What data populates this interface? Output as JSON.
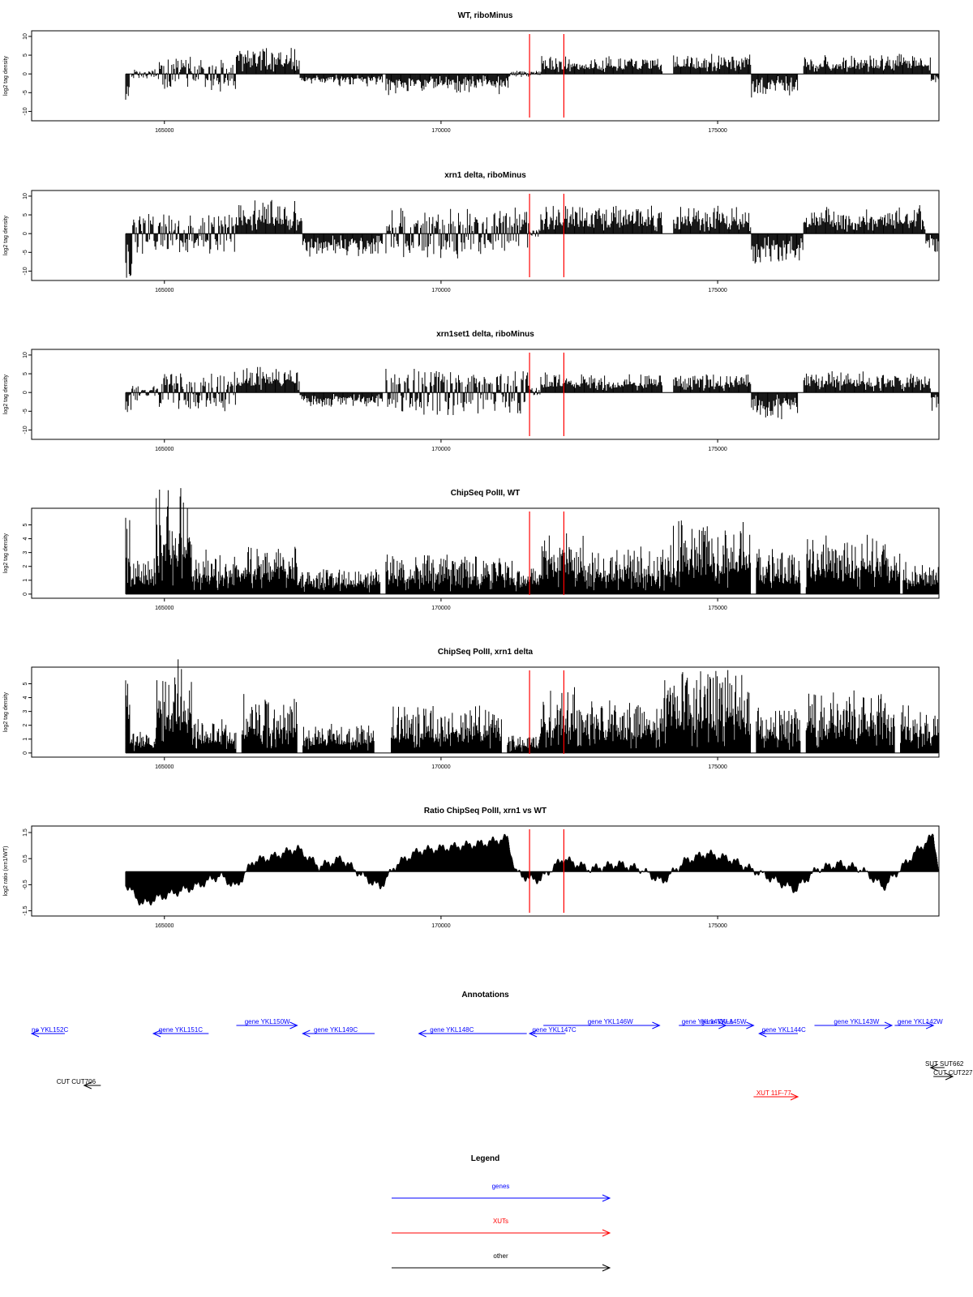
{
  "chart_data": [
    {
      "id": "p1",
      "type": "bar",
      "title": "WT, riboMinus",
      "xlabel": "",
      "ylabel": "log2 tag density",
      "xlim": [
        162600,
        179000
      ],
      "ylim": [
        -12.5,
        11.5
      ],
      "xticks": [
        165000,
        170000,
        175000
      ],
      "yticks": [
        -10,
        -5,
        0,
        5,
        10
      ],
      "x_start": 164300,
      "x_end": 178990,
      "step": 16,
      "segments": [
        {
          "x0": 164300,
          "x1": 164380,
          "dir": -1,
          "amp": 7
        },
        {
          "x0": 164400,
          "x1": 164900,
          "dir": 0,
          "amp": 0.8
        },
        {
          "x0": 164900,
          "x1": 166300,
          "dir": 0,
          "amp": 2.6
        },
        {
          "x0": 166300,
          "x1": 167450,
          "dir": 1,
          "amp": 4.2
        },
        {
          "x0": 167450,
          "x1": 168950,
          "dir": -1,
          "amp": 1.9
        },
        {
          "x0": 169000,
          "x1": 171250,
          "dir": -1,
          "amp": 3.3
        },
        {
          "x0": 171250,
          "x1": 171800,
          "dir": 0,
          "amp": 0.5
        },
        {
          "x0": 171800,
          "x1": 174000,
          "dir": 1,
          "amp": 2.9
        },
        {
          "x0": 174200,
          "x1": 175600,
          "dir": 1,
          "amp": 3.2
        },
        {
          "x0": 175600,
          "x1": 176450,
          "dir": -1,
          "amp": 3.6
        },
        {
          "x0": 176550,
          "x1": 178150,
          "dir": 1,
          "amp": 3.0
        },
        {
          "x0": 178150,
          "x1": 178850,
          "dir": 1,
          "amp": 3.2
        },
        {
          "x0": 178850,
          "x1": 178990,
          "dir": -1,
          "amp": 1.5
        }
      ],
      "markers": [
        171600,
        172220
      ]
    },
    {
      "id": "p2",
      "type": "bar",
      "title": "xrn1 delta, riboMinus",
      "xlabel": "",
      "ylabel": "log2 tag density",
      "xlim": [
        162600,
        179000
      ],
      "ylim": [
        -12.5,
        11.5
      ],
      "xticks": [
        165000,
        170000,
        175000
      ],
      "yticks": [
        -10,
        -5,
        0,
        5,
        10
      ],
      "x_start": 164300,
      "x_end": 178990,
      "step": 16,
      "segments": [
        {
          "x0": 164300,
          "x1": 164420,
          "dir": -1,
          "amp": 8
        },
        {
          "x0": 164420,
          "x1": 166300,
          "dir": 0,
          "amp": 3.2
        },
        {
          "x0": 166300,
          "x1": 167500,
          "dir": 1,
          "amp": 5.6
        },
        {
          "x0": 167500,
          "x1": 168950,
          "dir": -1,
          "amp": 3.6
        },
        {
          "x0": 169000,
          "x1": 171600,
          "dir": 0,
          "amp": 4.0
        },
        {
          "x0": 171600,
          "x1": 171800,
          "dir": 0,
          "amp": 0.8
        },
        {
          "x0": 171800,
          "x1": 174000,
          "dir": 1,
          "amp": 4.5
        },
        {
          "x0": 174200,
          "x1": 175600,
          "dir": 1,
          "amp": 4.6
        },
        {
          "x0": 175600,
          "x1": 176550,
          "dir": -1,
          "amp": 5.0
        },
        {
          "x0": 176550,
          "x1": 178150,
          "dir": 1,
          "amp": 4.3
        },
        {
          "x0": 178150,
          "x1": 178750,
          "dir": 1,
          "amp": 5.0
        },
        {
          "x0": 178750,
          "x1": 178990,
          "dir": -1,
          "amp": 3.0
        }
      ],
      "markers": [
        171600,
        172220
      ]
    },
    {
      "id": "p3",
      "type": "bar",
      "title": "xrn1set1 delta, riboMinus",
      "xlabel": "",
      "ylabel": "log2 tag density",
      "xlim": [
        162600,
        179000
      ],
      "ylim": [
        -12.5,
        11.5
      ],
      "xticks": [
        165000,
        170000,
        175000
      ],
      "yticks": [
        -10,
        -5,
        0,
        5,
        10
      ],
      "x_start": 164300,
      "x_end": 178990,
      "step": 16,
      "segments": [
        {
          "x0": 164300,
          "x1": 164400,
          "dir": -1,
          "amp": 3.5
        },
        {
          "x0": 164400,
          "x1": 164900,
          "dir": 0,
          "amp": 1.2
        },
        {
          "x0": 164900,
          "x1": 166300,
          "dir": 0,
          "amp": 3.2
        },
        {
          "x0": 166300,
          "x1": 167450,
          "dir": 1,
          "amp": 4.3
        },
        {
          "x0": 167450,
          "x1": 168950,
          "dir": -1,
          "amp": 2.4
        },
        {
          "x0": 169000,
          "x1": 171600,
          "dir": 0,
          "amp": 3.6
        },
        {
          "x0": 171600,
          "x1": 171800,
          "dir": 0,
          "amp": 1.0
        },
        {
          "x0": 171800,
          "x1": 174000,
          "dir": 1,
          "amp": 3.3
        },
        {
          "x0": 174200,
          "x1": 175600,
          "dir": 1,
          "amp": 3.0
        },
        {
          "x0": 175600,
          "x1": 176450,
          "dir": -1,
          "amp": 4.0
        },
        {
          "x0": 176550,
          "x1": 178150,
          "dir": 1,
          "amp": 3.4
        },
        {
          "x0": 178150,
          "x1": 178850,
          "dir": 1,
          "amp": 3.0
        },
        {
          "x0": 178850,
          "x1": 178990,
          "dir": -1,
          "amp": 3.0
        }
      ],
      "markers": [
        171600,
        172220
      ]
    },
    {
      "id": "p4",
      "type": "bar",
      "title": "ChipSeq PolII, WT",
      "xlabel": "",
      "ylabel": "log2 tag density",
      "xlim": [
        162600,
        179000
      ],
      "ylim": [
        -0.3,
        6.2
      ],
      "xticks": [
        165000,
        170000,
        175000
      ],
      "yticks": [
        0,
        1,
        2,
        3,
        4,
        5
      ],
      "x_start": 164300,
      "x_end": 178990,
      "step": 12,
      "segments": [
        {
          "x0": 164300,
          "x1": 164380,
          "dir": 1,
          "amp": 4.2
        },
        {
          "x0": 164380,
          "x1": 164850,
          "dir": 1,
          "amp": 1.5
        },
        {
          "x0": 164850,
          "x1": 165500,
          "dir": 1,
          "amp": 4.8
        },
        {
          "x0": 165500,
          "x1": 166300,
          "dir": 1,
          "amp": 1.8
        },
        {
          "x0": 166300,
          "x1": 167400,
          "dir": 1,
          "amp": 2.1
        },
        {
          "x0": 167400,
          "x1": 168900,
          "dir": 1,
          "amp": 1.1
        },
        {
          "x0": 169000,
          "x1": 171300,
          "dir": 1,
          "amp": 1.7
        },
        {
          "x0": 171300,
          "x1": 171800,
          "dir": 1,
          "amp": 1.2
        },
        {
          "x0": 171800,
          "x1": 172600,
          "dir": 1,
          "amp": 2.6
        },
        {
          "x0": 172600,
          "x1": 174200,
          "dir": 1,
          "amp": 2.0
        },
        {
          "x0": 174200,
          "x1": 175600,
          "dir": 1,
          "amp": 3.1
        },
        {
          "x0": 175700,
          "x1": 176500,
          "dir": 1,
          "amp": 1.9
        },
        {
          "x0": 176600,
          "x1": 178300,
          "dir": 1,
          "amp": 2.5
        },
        {
          "x0": 178350,
          "x1": 178990,
          "dir": 1,
          "amp": 1.4
        }
      ],
      "markers": [
        171600,
        172220
      ]
    },
    {
      "id": "p5",
      "type": "bar",
      "title": "ChipSeq PolII, xrn1 delta",
      "xlabel": "",
      "ylabel": "log2 tag density",
      "xlim": [
        162600,
        179000
      ],
      "ylim": [
        -0.3,
        6.2
      ],
      "xticks": [
        165000,
        170000,
        175000
      ],
      "yticks": [
        0,
        1,
        2,
        3,
        4,
        5
      ],
      "x_start": 164300,
      "x_end": 178990,
      "step": 12,
      "segments": [
        {
          "x0": 164300,
          "x1": 164380,
          "dir": 1,
          "amp": 4.0
        },
        {
          "x0": 164380,
          "x1": 164850,
          "dir": 1,
          "amp": 0.9
        },
        {
          "x0": 164850,
          "x1": 165500,
          "dir": 1,
          "amp": 4.1
        },
        {
          "x0": 165500,
          "x1": 166300,
          "dir": 1,
          "amp": 1.6
        },
        {
          "x0": 166400,
          "x1": 167400,
          "dir": 1,
          "amp": 2.5
        },
        {
          "x0": 167500,
          "x1": 168800,
          "dir": 1,
          "amp": 1.2
        },
        {
          "x0": 169100,
          "x1": 171100,
          "dir": 1,
          "amp": 2.0
        },
        {
          "x0": 171200,
          "x1": 171800,
          "dir": 1,
          "amp": 0.8
        },
        {
          "x0": 171800,
          "x1": 172600,
          "dir": 1,
          "amp": 2.8
        },
        {
          "x0": 172600,
          "x1": 174000,
          "dir": 1,
          "amp": 2.3
        },
        {
          "x0": 174000,
          "x1": 175600,
          "dir": 1,
          "amp": 3.6
        },
        {
          "x0": 175700,
          "x1": 176500,
          "dir": 1,
          "amp": 2.0
        },
        {
          "x0": 176600,
          "x1": 178200,
          "dir": 1,
          "amp": 2.6
        },
        {
          "x0": 178300,
          "x1": 178990,
          "dir": 1,
          "amp": 2.0
        }
      ],
      "markers": [
        171600,
        172220
      ]
    },
    {
      "id": "p6",
      "type": "area",
      "title": "Ratio ChipSeq PolII, xrn1 vs WT",
      "xlabel": "",
      "ylabel": "log2 ratio (xrn1/WT)",
      "xlim": [
        162600,
        179000
      ],
      "ylim": [
        -1.7,
        1.75
      ],
      "xticks": [
        165000,
        170000,
        175000
      ],
      "yticks": [
        -1.5,
        -0.5,
        0.5,
        1.5
      ],
      "x_start": 164300,
      "x_end": 178990,
      "step": 6,
      "baseline": 0,
      "x": [
        164300,
        164600,
        164900,
        165200,
        165600,
        166000,
        166300,
        166600,
        167000,
        167400,
        167800,
        168200,
        168600,
        168900,
        169200,
        169600,
        170000,
        170400,
        170800,
        171200,
        171350,
        171600,
        171800,
        172200,
        172700,
        173200,
        173600,
        174000,
        174400,
        174800,
        175200,
        175600,
        176000,
        176400,
        176800,
        177200,
        177600,
        178000,
        178300,
        178600,
        178900,
        178990
      ],
      "values": [
        -0.5,
        -1.25,
        -1.0,
        -0.8,
        -0.55,
        -0.15,
        -0.6,
        0.4,
        0.6,
        0.9,
        0.2,
        0.5,
        -0.2,
        -0.6,
        0.3,
        0.8,
        0.9,
        1.0,
        1.1,
        1.3,
        0.0,
        -0.3,
        -0.3,
        0.5,
        0.1,
        0.3,
        0.1,
        -0.4,
        0.4,
        0.7,
        0.5,
        0.1,
        -0.3,
        -0.7,
        0.1,
        0.3,
        0.1,
        -0.6,
        0.1,
        0.8,
        1.4,
        0.2
      ],
      "markers": [
        171600,
        172220
      ]
    }
  ],
  "annotations": {
    "title": "Annotations",
    "features": [
      {
        "label": "ne YKL152C",
        "row": 0,
        "x0": 162600,
        "x1": 163200,
        "dir": "left",
        "cls": "gene",
        "lx": 162600
      },
      {
        "label": "gene YKL151C",
        "row": 0,
        "x0": 164800,
        "x1": 165800,
        "dir": "left",
        "cls": "gene",
        "lx": 164900
      },
      {
        "label": "gene YKL150W",
        "row": -1,
        "x0": 166300,
        "x1": 167400,
        "dir": "right",
        "cls": "gene",
        "lx": 166450
      },
      {
        "label": "gene YKL149C",
        "row": 0,
        "x0": 167500,
        "x1": 168800,
        "dir": "left",
        "cls": "gene",
        "lx": 167700
      },
      {
        "label": "gene YKL148C",
        "row": 0,
        "x0": 169600,
        "x1": 171550,
        "dir": "left",
        "cls": "gene",
        "lx": 169800
      },
      {
        "label": "gene YKL147C",
        "row": 0,
        "x0": 171600,
        "x1": 172250,
        "dir": "left",
        "cls": "gene",
        "lx": 171650
      },
      {
        "label": "gene YKL146W",
        "row": -1,
        "x0": 171850,
        "x1": 173950,
        "dir": "right",
        "cls": "gene",
        "lx": 172650
      },
      {
        "label": "gene YKL145W-A",
        "row": -1,
        "x0": 174300,
        "x1": 175150,
        "dir": "right",
        "cls": "gene",
        "lx": 174350
      },
      {
        "label": "gene YKL145W",
        "row": -1,
        "x0": 174300,
        "x1": 175650,
        "dir": "right",
        "cls": "gene",
        "lx": 174700
      },
      {
        "label": "gene YKL144C",
        "row": 0,
        "x0": 175750,
        "x1": 176450,
        "dir": "left",
        "cls": "gene",
        "lx": 175800
      },
      {
        "label": "gene YKL143W",
        "row": -1,
        "x0": 176750,
        "x1": 178150,
        "dir": "right",
        "cls": "gene",
        "lx": 177100
      },
      {
        "label": "gene YKL142W",
        "row": -1,
        "x0": 178200,
        "x1": 178900,
        "dir": "right",
        "cls": "gene",
        "lx": 178250
      },
      {
        "label": "CUT CUT706",
        "row": 1,
        "x0": 163550,
        "x1": 163850,
        "dir": "left",
        "cls": "other",
        "lx": 163050
      },
      {
        "label": "SUT SUT662",
        "row": 2,
        "x0": 178850,
        "x1": 179100,
        "dir": "left",
        "cls": "other",
        "lx": 178750
      },
      {
        "label": "CUT CUT227",
        "row": 3,
        "x0": 178900,
        "x1": 179250,
        "dir": "right",
        "cls": "other",
        "lx": 178900
      },
      {
        "label": "XUT 11F-77",
        "row": 4,
        "x0": 175650,
        "x1": 176450,
        "dir": "right",
        "cls": "xut",
        "lx": 175700
      }
    ]
  },
  "legend": {
    "title": "Legend",
    "items": [
      {
        "label": "genes",
        "cls": "gene"
      },
      {
        "label": "XUTs",
        "cls": "xut"
      },
      {
        "label": "other",
        "cls": "other"
      }
    ]
  },
  "colors": {
    "gene": "#0000ff",
    "xut": "#ff0000",
    "other": "#000000",
    "marker": "#ff0000",
    "bars": "#000000"
  }
}
